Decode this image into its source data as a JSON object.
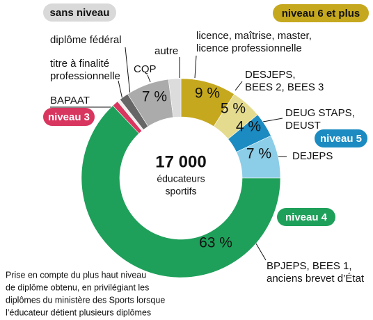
{
  "chart_data": {
    "type": "donut",
    "categories": [
      [
        "licence, maîtrise, master,",
        "licence professionnelle"
      ],
      [
        "DESJEPS,",
        "BEES 2, BEES 3"
      ],
      [
        "DEUG STAPS,",
        "DEUST"
      ],
      [
        "DEJEPS"
      ],
      [
        "BPJEPS, BEES 1,",
        "anciens brevet d’État"
      ],
      [
        "BAPAAT"
      ],
      [
        "titre à finalité",
        "professionnelle"
      ],
      [
        "diplôme fédéral"
      ],
      [
        "CQP"
      ],
      [
        "autre"
      ]
    ],
    "values": [
      9,
      5,
      4,
      7,
      63,
      1,
      0.5,
      1.5,
      7,
      2
    ],
    "value_labels": [
      "9 %",
      "5 %",
      "4 %",
      "7 %",
      "63 %",
      null,
      null,
      null,
      "7 %",
      null
    ],
    "colors": [
      "#c6a81e",
      "#e5db8e",
      "#1b8bc1",
      "#8ccde7",
      "#1ea05a",
      "#d8365f",
      "#f2eeee",
      "#666666",
      "#ababab",
      "#dcdcdc"
    ],
    "center": [
      "17 000",
      "éducateurs",
      "sportifs"
    ],
    "levels": [
      {
        "label": "sans niveau",
        "color": "#d9d9d9"
      },
      {
        "label": "niveau 6 et plus",
        "color": "#c6a81e"
      },
      {
        "label": "niveau 5",
        "color": "#1b8bc1"
      },
      {
        "label": "niveau 3",
        "color": "#d8365f"
      },
      {
        "label": "niveau 4",
        "color": "#1ea05a"
      }
    ],
    "note": [
      "Prise en compte du plus haut niveau",
      "de diplôme obtenu, en privilégiant les",
      "diplômes du ministère des Sports lorsque",
      "l’éducateur détient plusieurs diplômes"
    ]
  }
}
